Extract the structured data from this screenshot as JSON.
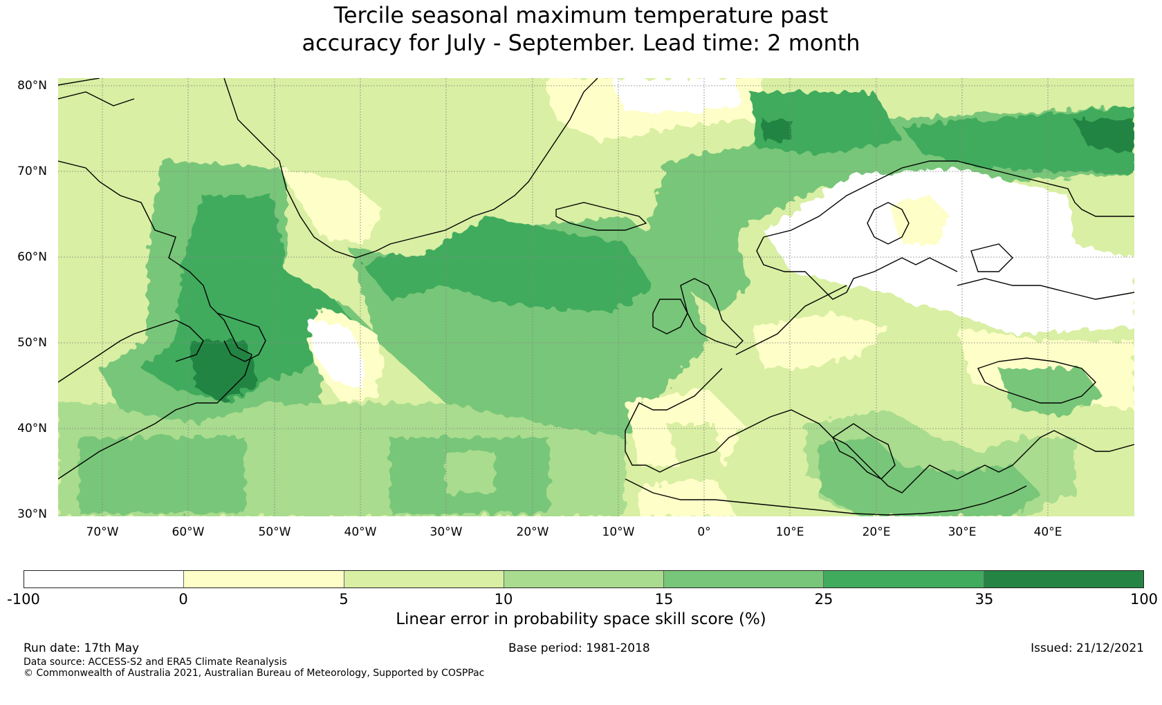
{
  "title": {
    "line1": "Tercile seasonal maximum temperature past",
    "line2": "accuracy for July - September. Lead time: 2 month"
  },
  "map": {
    "latitude_labels": [
      "80°N",
      "70°N",
      "60°N",
      "50°N",
      "40°N",
      "30°N"
    ],
    "longitude_labels": [
      "70°W",
      "60°W",
      "50°W",
      "40°W",
      "30°W",
      "20°W",
      "10°W",
      "0°",
      "10°E",
      "20°E",
      "30°E",
      "40°E"
    ],
    "extent": {
      "lon_min": -75,
      "lon_max": 50,
      "lat_min": 30,
      "lat_max": 81
    }
  },
  "colorbar": {
    "ticks": [
      "-100",
      "0",
      "5",
      "10",
      "15",
      "25",
      "35",
      "100"
    ],
    "colors": [
      "#ffffff",
      "#fefec8",
      "#d9efa3",
      "#a9dc8e",
      "#78c679",
      "#41ab5d",
      "#238443"
    ],
    "label": "Linear error in probability space skill score (%)"
  },
  "footer": {
    "run_date": "Run date: 17th May",
    "base_period": "Base period: 1981-2018",
    "issued": "Issued: 21/12/2021",
    "data_source": "Data source: ACCESS-S2 and ERA5 Climate Reanalysis",
    "copyright": "© Commonwealth of Australia 2021, Australian Bureau of Meteorology, Supported by COSPPac"
  }
}
